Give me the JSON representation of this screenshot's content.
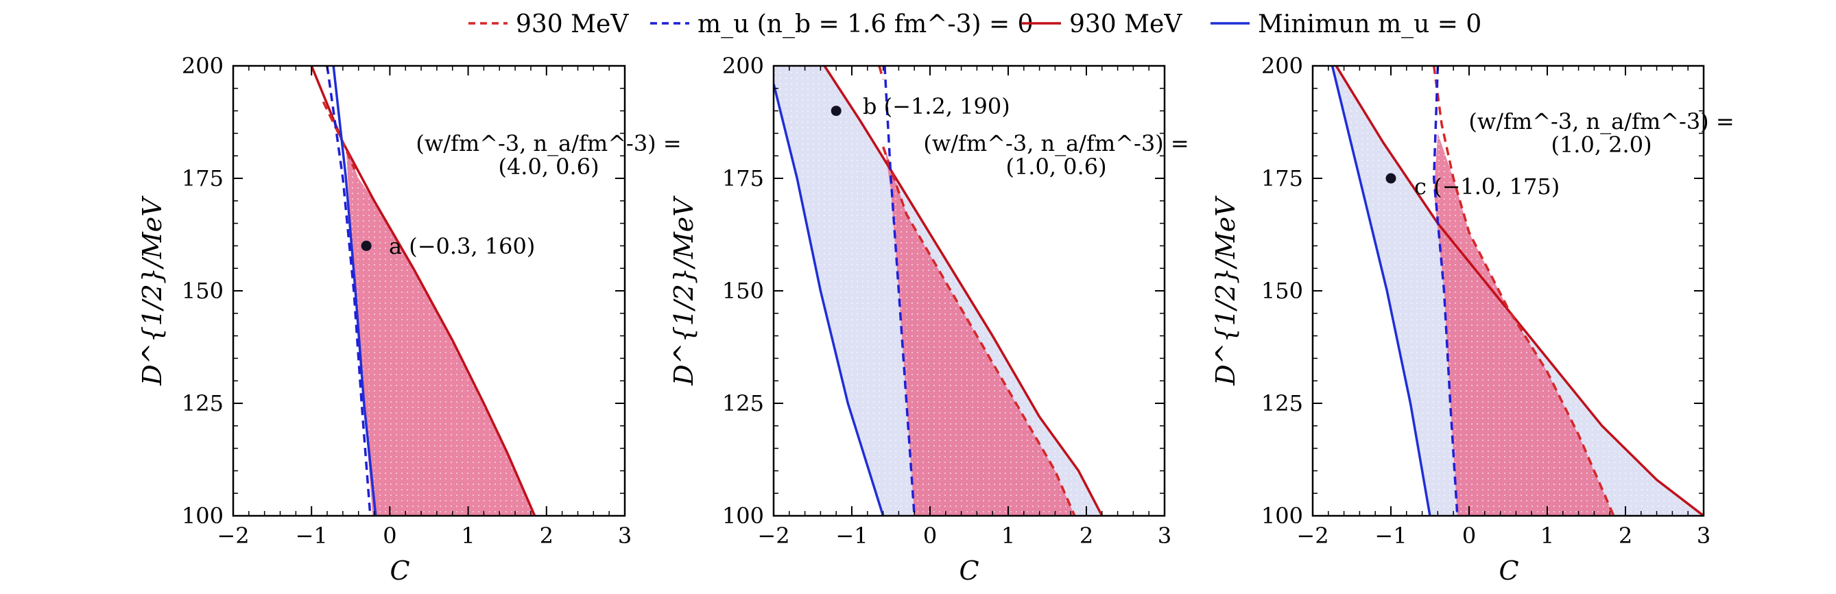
{
  "legend": [
    {
      "key": "red-dashed",
      "label": "930 MeV",
      "color": "#d62728",
      "dash": true
    },
    {
      "key": "blue-dashed",
      "label": "m_u (n_b = 1.6 fm^-3) = 0",
      "color": "#1f1fd6",
      "dash": true
    },
    {
      "key": "red-solid",
      "label": "930 MeV",
      "color": "#c0101a",
      "dash": false
    },
    {
      "key": "blue-solid",
      "label": "Minimun m_u = 0",
      "color": "#1f2fd6",
      "dash": false
    }
  ],
  "colors": {
    "red_fill": "#e8789a",
    "red_fill_light": "#f3a9a3",
    "blue_fill": "#d8dcf2",
    "point": "#111122"
  },
  "chart_data": [
    {
      "type": "line",
      "panel": "left",
      "xlabel": "C",
      "ylabel": "D^{1/2}/MeV",
      "xlim": [
        -2,
        3
      ],
      "ylim": [
        100,
        200
      ],
      "xticks": [
        "−2",
        "−1",
        "0",
        "1",
        "2",
        "3"
      ],
      "yticks": [
        "100",
        "125",
        "150",
        "175",
        "200"
      ],
      "annotation_line1": "(w/fm^-3, n_a/fm^-3) =",
      "annotation_line2": "(4.0, 0.6)",
      "point": {
        "label": "a (−0.3, 160)",
        "x": -0.3,
        "y": 160
      },
      "series": {
        "red_solid": [
          [
            -1.0,
            200
          ],
          [
            -0.6,
            183
          ],
          [
            -0.2,
            170
          ],
          [
            0.3,
            155
          ],
          [
            0.8,
            139
          ],
          [
            1.2,
            125
          ],
          [
            1.5,
            114
          ],
          [
            1.85,
            100
          ]
        ],
        "red_dashed": [
          [
            -0.85,
            192
          ],
          [
            -0.6,
            183
          ],
          [
            -0.45,
            177
          ]
        ],
        "blue_solid": [
          [
            -0.72,
            200
          ],
          [
            -0.56,
            175
          ],
          [
            -0.44,
            150
          ],
          [
            -0.33,
            125
          ],
          [
            -0.18,
            100
          ]
        ],
        "blue_dashed": [
          [
            -0.8,
            200
          ],
          [
            -0.6,
            175
          ],
          [
            -0.46,
            150
          ],
          [
            -0.36,
            125
          ],
          [
            -0.25,
            100
          ]
        ]
      },
      "fill_region": [
        [
          -0.56,
          182
        ],
        [
          -0.4,
          175
        ],
        [
          -0.2,
          170
        ],
        [
          0.3,
          155
        ],
        [
          0.8,
          139
        ],
        [
          1.2,
          125
        ],
        [
          1.5,
          114
        ],
        [
          1.85,
          100
        ],
        [
          -0.22,
          100
        ],
        [
          -0.33,
          125
        ],
        [
          -0.44,
          150
        ],
        [
          -0.52,
          170
        ]
      ]
    },
    {
      "type": "line",
      "panel": "middle",
      "xlabel": "C",
      "ylabel": "D^{1/2}/MeV",
      "xlim": [
        -2,
        3
      ],
      "ylim": [
        100,
        200
      ],
      "xticks": [
        "−2",
        "−1",
        "0",
        "1",
        "2",
        "3"
      ],
      "yticks": [
        "100",
        "125",
        "150",
        "175",
        "200"
      ],
      "annotation_line1": "(w/fm^-3, n_a/fm^-3) =",
      "annotation_line2": "(1.0, 0.6)",
      "point": {
        "label": "b (−1.2, 190)",
        "x": -1.2,
        "y": 190
      },
      "series": {
        "red_solid": [
          [
            -1.35,
            200
          ],
          [
            -0.9,
            188
          ],
          [
            -0.4,
            174
          ],
          [
            0.2,
            157
          ],
          [
            0.8,
            140
          ],
          [
            1.4,
            122
          ],
          [
            1.9,
            110
          ],
          [
            2.2,
            100
          ]
        ],
        "red_dashed": [
          [
            -0.65,
            200
          ],
          [
            -0.6,
            197
          ]
        ],
        "red_dashed_lower": [
          [
            -0.6,
            182
          ],
          [
            -0.3,
            167
          ],
          [
            0.1,
            155
          ],
          [
            0.6,
            140
          ],
          [
            1.2,
            122
          ],
          [
            1.6,
            110
          ],
          [
            1.85,
            100
          ]
        ],
        "blue_solid": [
          [
            -2.0,
            196
          ],
          [
            -1.7,
            175
          ],
          [
            -1.4,
            150
          ],
          [
            -1.05,
            125
          ],
          [
            -0.6,
            100
          ]
        ],
        "blue_dashed": [
          [
            -0.58,
            200
          ],
          [
            -0.5,
            175
          ],
          [
            -0.4,
            150
          ],
          [
            -0.3,
            125
          ],
          [
            -0.2,
            100
          ]
        ]
      },
      "fill_blue": [
        [
          -2.0,
          200
        ],
        [
          -1.35,
          200
        ],
        [
          -0.9,
          188
        ],
        [
          -0.4,
          174
        ],
        [
          0.2,
          157
        ],
        [
          0.8,
          140
        ],
        [
          1.4,
          122
        ],
        [
          1.9,
          110
        ],
        [
          2.2,
          100
        ],
        [
          -0.6,
          100
        ],
        [
          -1.05,
          125
        ],
        [
          -1.4,
          150
        ],
        [
          -1.7,
          175
        ],
        [
          -2.0,
          196
        ]
      ],
      "fill_red": [
        [
          -0.58,
          182
        ],
        [
          -0.3,
          167
        ],
        [
          0.1,
          155
        ],
        [
          0.6,
          140
        ],
        [
          1.2,
          122
        ],
        [
          1.6,
          110
        ],
        [
          1.85,
          100
        ],
        [
          -0.2,
          100
        ],
        [
          -0.3,
          125
        ],
        [
          -0.4,
          150
        ],
        [
          -0.5,
          172
        ]
      ]
    },
    {
      "type": "line",
      "panel": "right",
      "xlabel": "C",
      "ylabel": "D^{1/2}/MeV",
      "xlim": [
        -2,
        3
      ],
      "ylim": [
        100,
        200
      ],
      "xticks": [
        "−2",
        "−1",
        "0",
        "1",
        "2",
        "3"
      ],
      "yticks": [
        "100",
        "125",
        "150",
        "175",
        "200"
      ],
      "annotation_line1": "(w/fm^-3, n_a/fm^-3) =",
      "annotation_line2": "(1.0, 2.0)",
      "point": {
        "label": "c (−1.0, 175)",
        "x": -1.0,
        "y": 175
      },
      "series": {
        "red_solid": [
          [
            -1.7,
            200
          ],
          [
            -1.1,
            183
          ],
          [
            -0.4,
            165
          ],
          [
            0.3,
            150
          ],
          [
            1.0,
            135
          ],
          [
            1.7,
            120
          ],
          [
            2.4,
            108
          ],
          [
            3.0,
            100
          ]
        ],
        "red_dashed": [
          [
            -0.45,
            200
          ],
          [
            -0.35,
            187
          ],
          [
            -0.2,
            175
          ],
          [
            0.0,
            163
          ],
          [
            0.5,
            146
          ],
          [
            1.0,
            132
          ],
          [
            1.4,
            118
          ],
          [
            1.85,
            100
          ]
        ],
        "blue_solid": [
          [
            -1.75,
            200
          ],
          [
            -1.4,
            175
          ],
          [
            -1.05,
            150
          ],
          [
            -0.75,
            125
          ],
          [
            -0.5,
            100
          ]
        ],
        "blue_dashed": [
          [
            -0.4,
            200
          ],
          [
            -0.45,
            175
          ],
          [
            -0.32,
            150
          ],
          [
            -0.24,
            125
          ],
          [
            -0.15,
            100
          ]
        ]
      },
      "fill_blue": [
        [
          -1.75,
          200
        ],
        [
          -1.7,
          200
        ],
        [
          -1.1,
          183
        ],
        [
          -0.4,
          165
        ],
        [
          0.3,
          150
        ],
        [
          1.0,
          135
        ],
        [
          1.7,
          120
        ],
        [
          2.4,
          108
        ],
        [
          3.0,
          100
        ],
        [
          -0.5,
          100
        ],
        [
          -0.75,
          125
        ],
        [
          -1.05,
          150
        ],
        [
          -1.4,
          175
        ]
      ],
      "fill_red": [
        [
          -0.4,
          185
        ],
        [
          -0.2,
          175
        ],
        [
          0.0,
          163
        ],
        [
          0.5,
          146
        ],
        [
          1.0,
          132
        ],
        [
          1.4,
          118
        ],
        [
          1.85,
          100
        ],
        [
          -0.15,
          100
        ],
        [
          -0.24,
          125
        ],
        [
          -0.32,
          150
        ],
        [
          -0.45,
          172
        ]
      ]
    }
  ]
}
